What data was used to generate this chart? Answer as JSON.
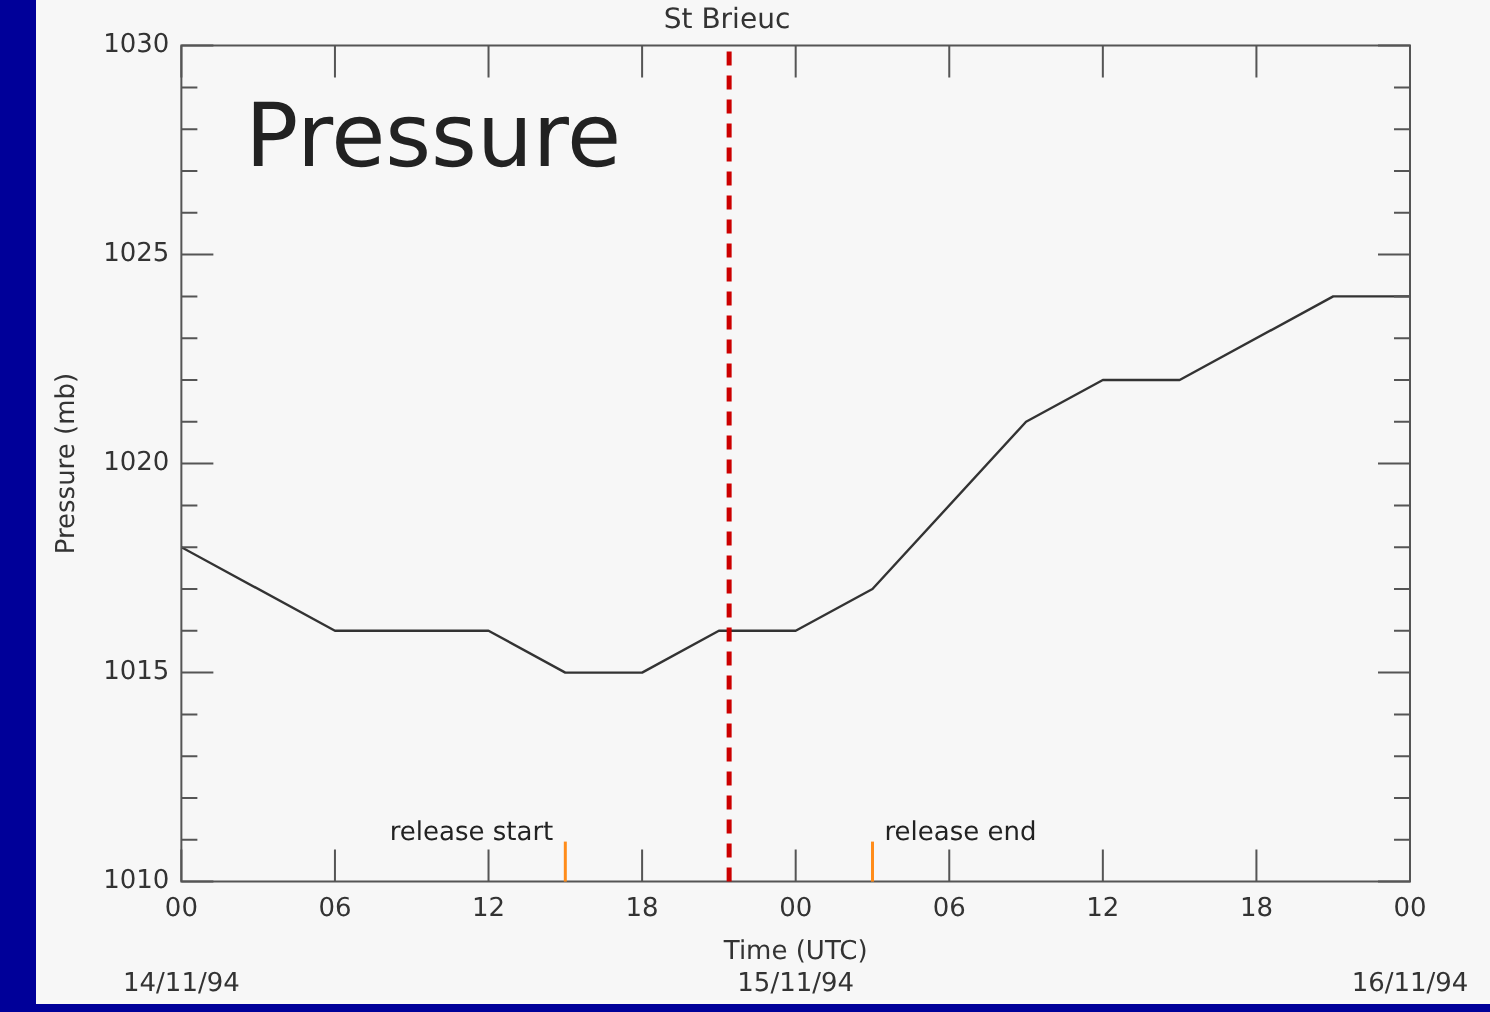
{
  "chart_data": {
    "type": "line",
    "title": "St Brieuc",
    "xlabel": "Time (UTC)",
    "ylabel": "Pressure (mb)",
    "x": [
      "--11-14T00:00",
      "--11-14T06:00",
      "--11-14T12:00",
      "--11-14T15:00",
      "--11-14T18:00",
      "--11-14T21:00",
      "--11-15T00:00",
      "--11-15T03:00",
      "--11-15T09:00",
      "--11-15T12:00",
      "--11-15T15:00",
      "--11-15T21:00",
      "--11-16T00:00"
    ],
    "series": [
      {
        "color": "#333333",
        "values": [
          1018,
          1016,
          1016,
          1015,
          1015,
          1016,
          1016,
          1017,
          1021,
          1022,
          1022,
          1024,
          1024
        ]
      }
    ],
    "xlim": [
      "--11-14T00:00",
      "--11-16T00:00"
    ],
    "xticks": [
      {
        "value": "--11-14T00:00",
        "label": "00"
      },
      {
        "value": "--11-14T06:00",
        "label": "06"
      },
      {
        "value": "--11-14T12:00",
        "label": "12"
      },
      {
        "value": "--11-14T18:00",
        "label": "18"
      },
      {
        "value": "--11-15T00:00",
        "label": "00"
      },
      {
        "value": "--11-15T06:00",
        "label": "06"
      },
      {
        "value": "--11-15T12:00",
        "label": "12"
      },
      {
        "value": "--11-15T18:00",
        "label": "18"
      },
      {
        "value": "--11-16T00:00",
        "label": "00"
      }
    ],
    "ylim": [
      1010,
      1030
    ],
    "yticks": [
      1010,
      1015,
      1020,
      1025,
      1030
    ],
    "ref_lines": [
      {
        "axis": "x",
        "value": "--11-14T21:24",
        "color": "#cc0000",
        "line_style": "dashed"
      },
      {
        "axis": "x",
        "value": "--11-14T15:00",
        "label": "release start",
        "color": "#ff8c1a"
      },
      {
        "axis": "x",
        "value": "--11-15T03:00",
        "label": "release end",
        "color": "#ff8c1a"
      }
    ],
    "annotations": [
      "Pressure",
      "14/11/94",
      "15/11/94",
      "16/11/94"
    ],
    "grid": false,
    "legend": false,
    "marker": "none",
    "line_style": "solid"
  }
}
